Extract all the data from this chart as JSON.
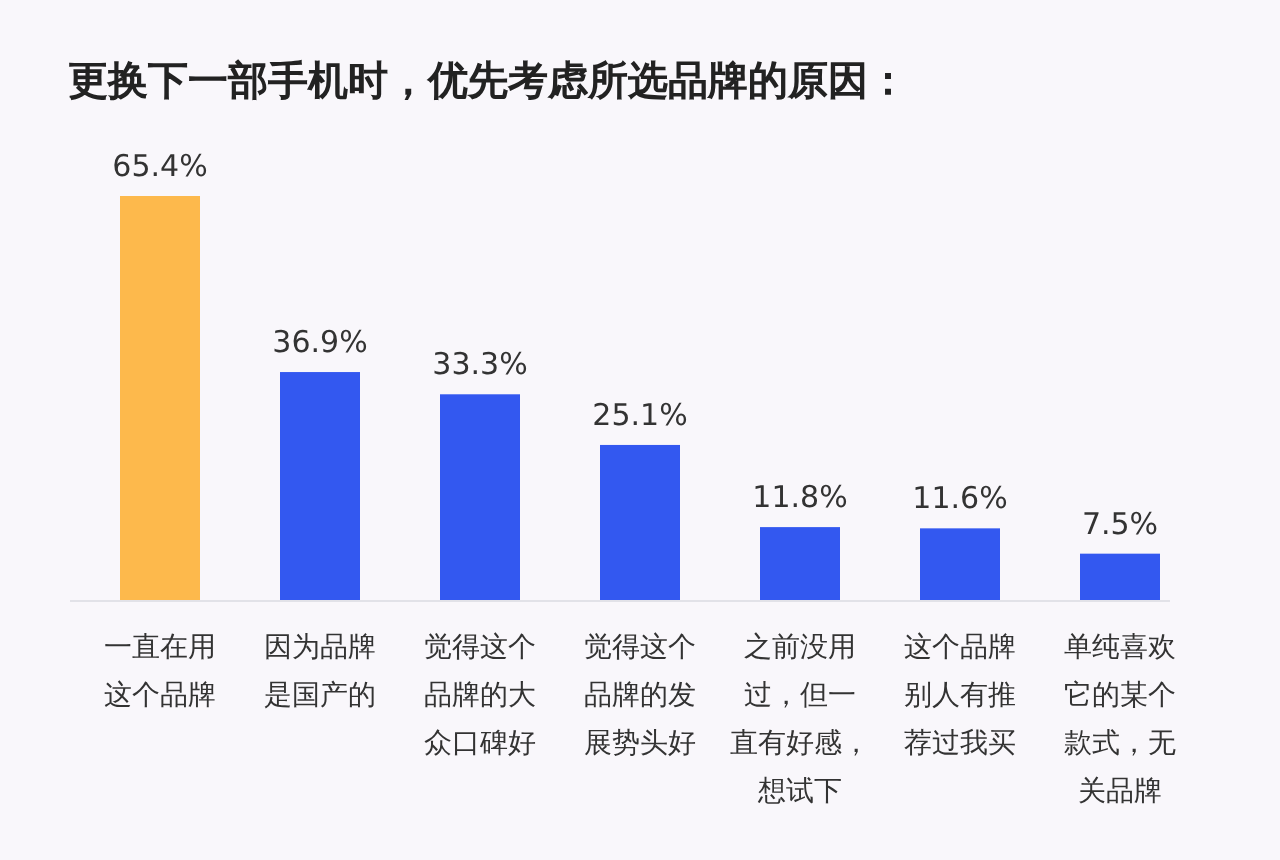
{
  "chart_data": {
    "type": "bar",
    "title": "更换下一部手机时，优先考虑所选品牌的原因：",
    "categories": [
      "一直在用这个品牌",
      "因为品牌是国产的",
      "觉得这个品牌的大众口碑好",
      "觉得这个品牌的发展势头好",
      "之前没用过，但一直有好感，想试下",
      "这个品牌别人有推荐过我买",
      "单纯喜欢它的某个款式，无关品牌"
    ],
    "values": [
      65.4,
      36.9,
      33.3,
      25.1,
      11.8,
      11.6,
      7.5
    ],
    "colors": [
      "#fdb94c",
      "#3358f0",
      "#3358f0",
      "#3358f0",
      "#3358f0",
      "#3358f0",
      "#3358f0"
    ],
    "value_labels": [
      "65.4%",
      "36.9%",
      "33.3%",
      "25.1%",
      "11.8%",
      "11.6%",
      "7.5%"
    ]
  }
}
